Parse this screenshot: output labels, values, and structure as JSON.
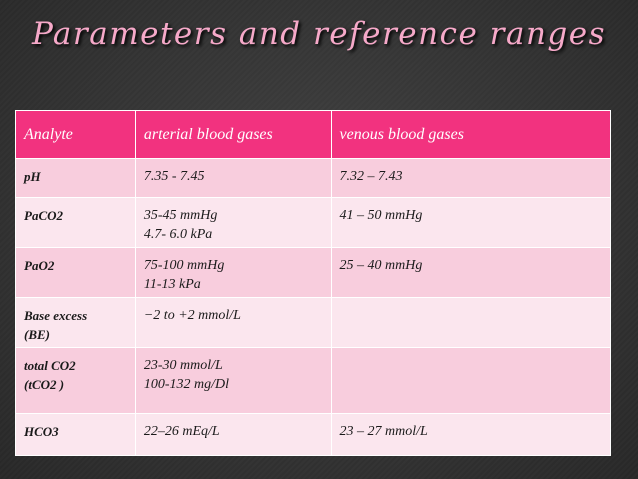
{
  "title": "Parameters and reference ranges",
  "table": {
    "header": [
      "Analyte",
      "arterial blood gases",
      "venous blood gases"
    ],
    "rows": [
      [
        [
          "pH"
        ],
        [
          "7.35 - 7.45"
        ],
        [
          "7.32 – 7.43"
        ]
      ],
      [
        [
          "PaCO2"
        ],
        [
          "35-45 mmHg",
          "4.7- 6.0 kPa"
        ],
        [
          "41 – 50 mmHg"
        ]
      ],
      [
        [
          "PaO2"
        ],
        [
          "75-100 mmHg",
          "11-13 kPa"
        ],
        [
          "25 – 40 mmHg"
        ]
      ],
      [
        [
          "Base excess",
          "(BE)"
        ],
        [
          "−2 to +2 mmol/L"
        ],
        []
      ],
      [
        [
          "total CO2",
          "(tCO2 )"
        ],
        [
          "23-30 mmol/L",
          "100-132 mg/Dl"
        ],
        []
      ],
      [
        [
          "HCO3"
        ],
        [
          "22–26 mEq/L"
        ],
        [
          "23 – 27 mmol/L"
        ]
      ]
    ]
  }
}
